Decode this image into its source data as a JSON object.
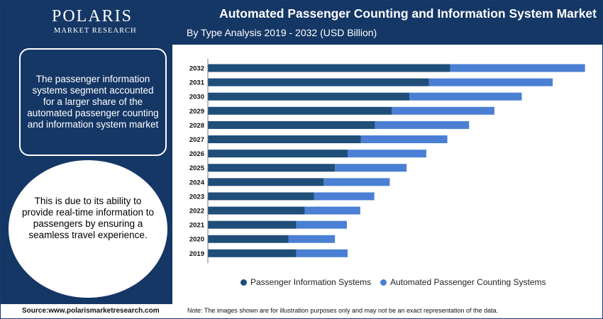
{
  "brand": {
    "name": "POLARIS",
    "tagline": "MARKET RESEARCH"
  },
  "header": {
    "title": "Automated Passenger Counting and Information System Market",
    "subtitle": "By Type Analysis 2019 - 2032 (USD Billion)"
  },
  "sidebar": {
    "box_text": "The passenger information systems segment accounted for a larger share of the automated passenger counting and information system market",
    "circle_text": "This is due to its ability to provide real-time information to passengers by ensuring a seamless travel experience."
  },
  "footer": {
    "source": "Source:www.polarismarketresearch.com",
    "note": "Note: The images shown are for illustration purposes only and may not be an exact representation of the data."
  },
  "colors": {
    "navy": "#153766",
    "series1": "#1f4e79",
    "series2": "#4a7fd4"
  },
  "chart_data": {
    "type": "bar",
    "orientation": "horizontal",
    "stacked": true,
    "categories": [
      "2032",
      "2031",
      "2030",
      "2029",
      "2028",
      "2027",
      "2026",
      "2025",
      "2024",
      "2023",
      "2022",
      "2021",
      "2020",
      "2019"
    ],
    "series": [
      {
        "name": "Passenger Information Systems",
        "color": "#1f4e79",
        "values": [
          345,
          315,
          287,
          262,
          238,
          218,
          199,
          181,
          165,
          151,
          138,
          126,
          115,
          126
        ]
      },
      {
        "name": "Automated Passenger Counting Systems",
        "color": "#4a7fd4",
        "values": [
          192,
          176,
          160,
          146,
          134,
          123,
          112,
          102,
          94,
          86,
          79,
          72,
          66,
          73
        ]
      }
    ],
    "legend_position": "bottom",
    "grid": false,
    "xlabel": "",
    "ylabel": ""
  }
}
